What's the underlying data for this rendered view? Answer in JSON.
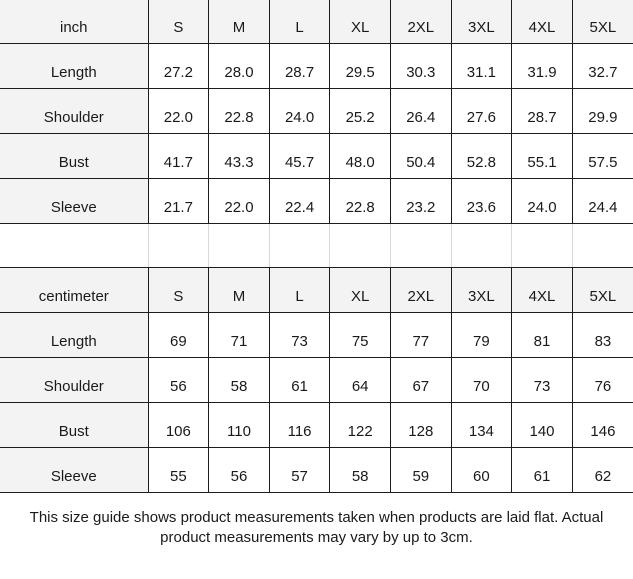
{
  "colors": {
    "header_bg": "#f3f3f3",
    "label_column_bg": "#f3f3f3",
    "grid_dark": "#1c1c1c",
    "grid_light": "#d9d9d9",
    "text": "#1a1a1a",
    "background": "#ffffff"
  },
  "chart_data": [
    {
      "type": "table",
      "unit": "inch",
      "sizes": [
        "S",
        "M",
        "L",
        "XL",
        "2XL",
        "3XL",
        "4XL",
        "5XL"
      ],
      "rows": [
        {
          "label": "Length",
          "values": [
            "27.2",
            "28.0",
            "28.7",
            "29.5",
            "30.3",
            "31.1",
            "31.9",
            "32.7"
          ]
        },
        {
          "label": "Shoulder",
          "values": [
            "22.0",
            "22.8",
            "24.0",
            "25.2",
            "26.4",
            "27.6",
            "28.7",
            "29.9"
          ]
        },
        {
          "label": "Bust",
          "values": [
            "41.7",
            "43.3",
            "45.7",
            "48.0",
            "50.4",
            "52.8",
            "55.1",
            "57.5"
          ]
        },
        {
          "label": "Sleeve",
          "values": [
            "21.7",
            "22.0",
            "22.4",
            "22.8",
            "23.2",
            "23.6",
            "24.0",
            "24.4"
          ]
        }
      ]
    },
    {
      "type": "table",
      "unit": "centimeter",
      "sizes": [
        "S",
        "M",
        "L",
        "XL",
        "2XL",
        "3XL",
        "4XL",
        "5XL"
      ],
      "rows": [
        {
          "label": "Length",
          "values": [
            "69",
            "71",
            "73",
            "75",
            "77",
            "79",
            "81",
            "83"
          ]
        },
        {
          "label": "Shoulder",
          "values": [
            "56",
            "58",
            "61",
            "64",
            "67",
            "70",
            "73",
            "76"
          ]
        },
        {
          "label": "Bust",
          "values": [
            "106",
            "110",
            "116",
            "122",
            "128",
            "134",
            "140",
            "146"
          ]
        },
        {
          "label": "Sleeve",
          "values": [
            "55",
            "56",
            "57",
            "58",
            "59",
            "60",
            "61",
            "62"
          ]
        }
      ]
    }
  ],
  "footer": {
    "text": "This size guide shows product measurements taken when products are laid flat. Actual product measurements may vary by up to 3cm."
  }
}
